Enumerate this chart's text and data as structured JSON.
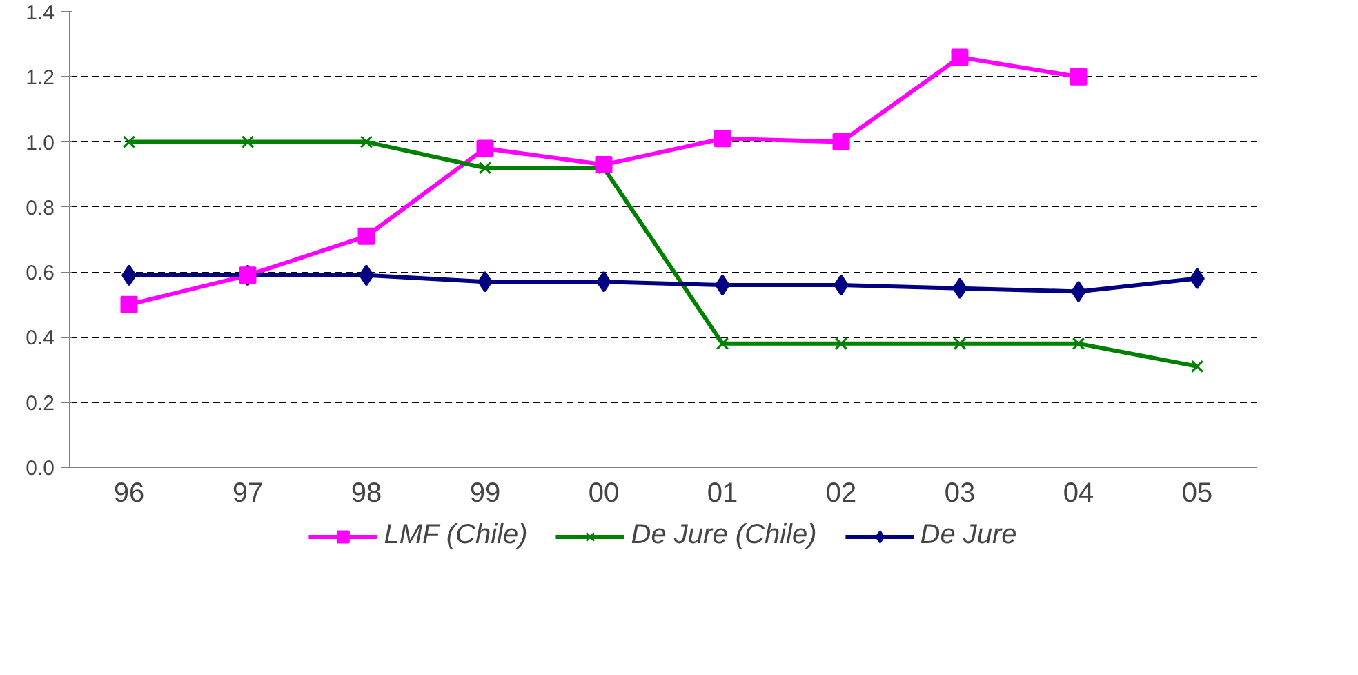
{
  "chart_data": {
    "type": "line",
    "categories": [
      "96",
      "97",
      "98",
      "99",
      "00",
      "01",
      "02",
      "03",
      "04",
      "05"
    ],
    "series": [
      {
        "name": "LMF (Chile)",
        "color": "#ff00ff",
        "marker": "square",
        "values": [
          0.5,
          0.59,
          0.71,
          0.98,
          0.93,
          1.01,
          1.0,
          1.26,
          1.2,
          null
        ]
      },
      {
        "name": "De Jure (Chile)",
        "color": "#008000",
        "marker": "cross",
        "values": [
          1.0,
          1.0,
          1.0,
          0.92,
          0.92,
          0.38,
          0.38,
          0.38,
          0.38,
          0.31
        ]
      },
      {
        "name": "De Jure",
        "color": "#000080",
        "marker": "diamond",
        "values": [
          0.59,
          0.59,
          0.59,
          0.57,
          0.57,
          0.56,
          0.56,
          0.55,
          0.54,
          0.58
        ]
      }
    ],
    "ylim": [
      0,
      1.4
    ],
    "yticks": [
      {
        "value": 0,
        "label": "0.0"
      },
      {
        "value": 0.2,
        "label": "0.2"
      },
      {
        "value": 0.4,
        "label": "0.4"
      },
      {
        "value": 0.6,
        "label": "0.6"
      },
      {
        "value": 0.8,
        "label": "0.8"
      },
      {
        "value": 1.0,
        "label": "1.0"
      },
      {
        "value": 1.2,
        "label": "1.2"
      },
      {
        "value": 1.4,
        "label": "1.4"
      }
    ],
    "grid": "y",
    "legend": "bottom",
    "line_style": "solid"
  }
}
